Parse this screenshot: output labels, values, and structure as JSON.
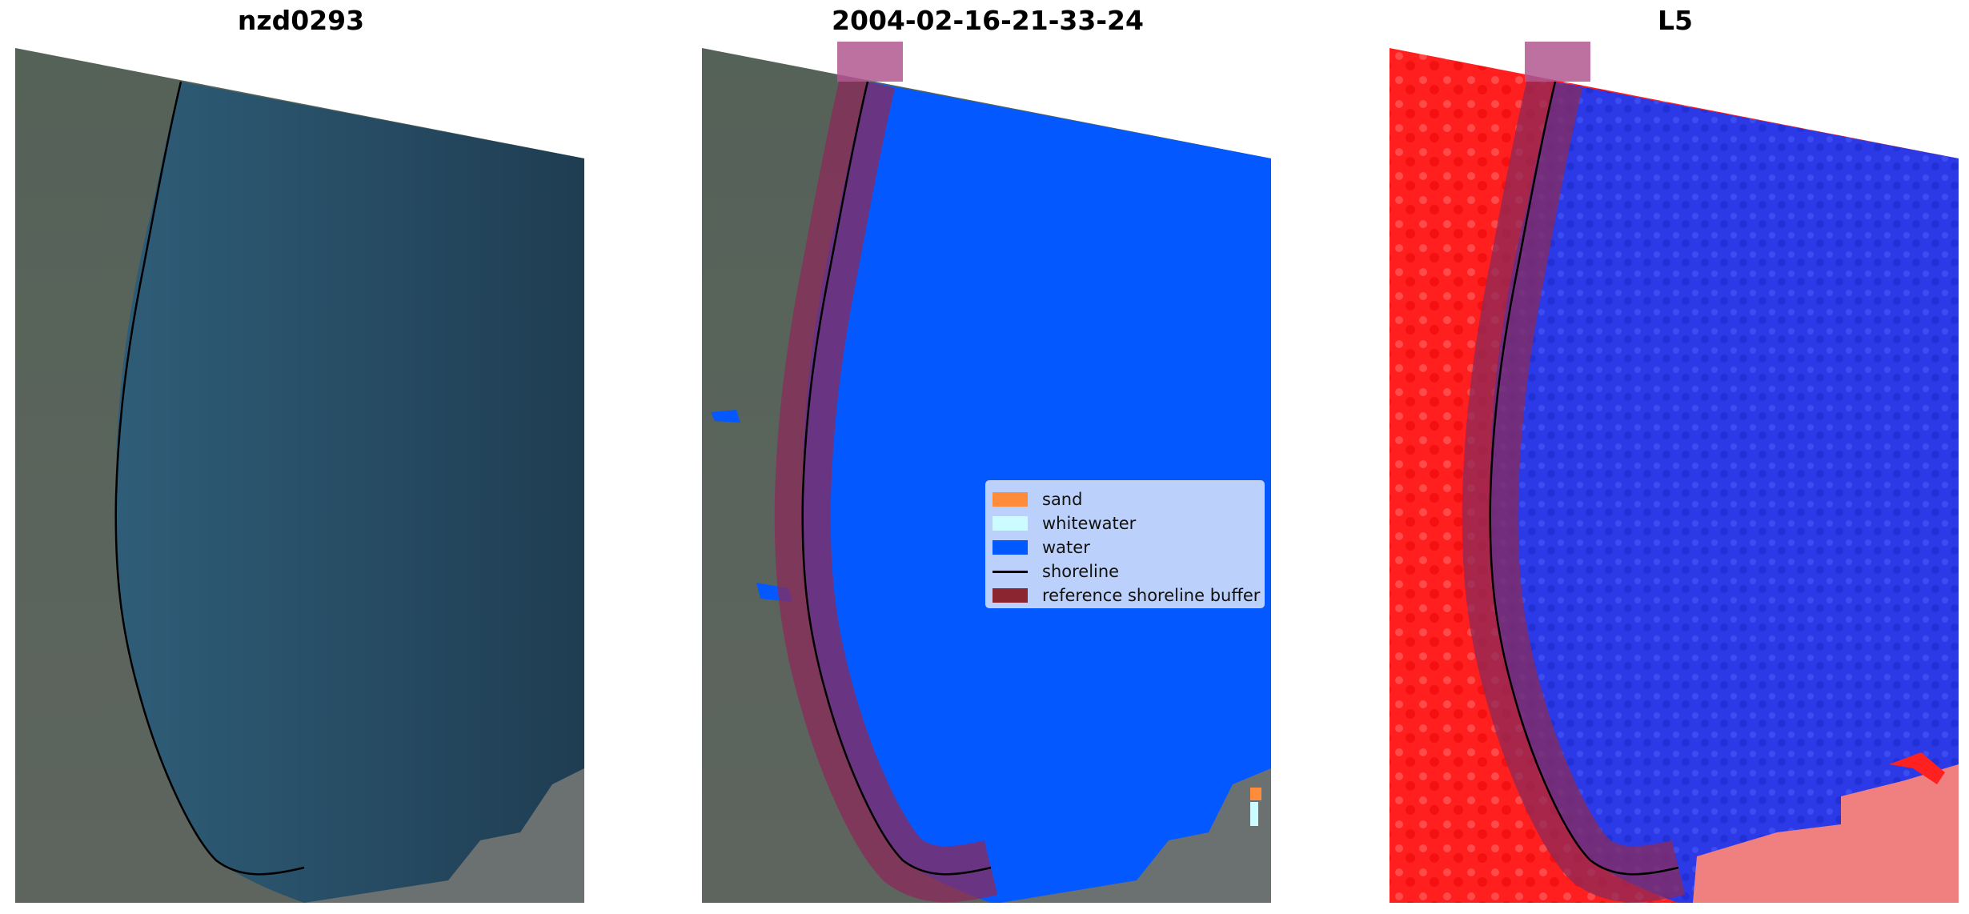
{
  "panels": [
    {
      "title": "nzd0293"
    },
    {
      "title": "2004-02-16-21-33-24"
    },
    {
      "title": "L5"
    }
  ],
  "legend": {
    "items": [
      {
        "label": "sand",
        "color": "#ff8c3a",
        "kind": "patch"
      },
      {
        "label": "whitewater",
        "color": "#ccfcff",
        "kind": "patch"
      },
      {
        "label": "water",
        "color": "#0058ff",
        "kind": "patch"
      },
      {
        "label": "shoreline",
        "color": "#000000",
        "kind": "line"
      },
      {
        "label": "reference shoreline buffer",
        "color": "#8b2631",
        "kind": "patch"
      }
    ]
  },
  "colors": {
    "land": "#4f5b52",
    "sea_rgb": "#24475e",
    "water_class": "#0458ff",
    "land_index": "#ff2020",
    "water_index": "#2a35e8",
    "buffer": "#8b2a5a"
  }
}
